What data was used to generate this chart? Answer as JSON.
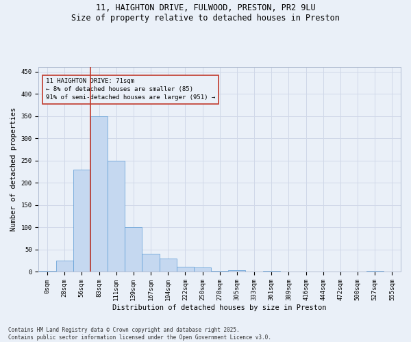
{
  "title_line1": "11, HAIGHTON DRIVE, FULWOOD, PRESTON, PR2 9LU",
  "title_line2": "Size of property relative to detached houses in Preston",
  "xlabel": "Distribution of detached houses by size in Preston",
  "ylabel": "Number of detached properties",
  "bar_values": [
    3,
    25,
    230,
    350,
    250,
    100,
    40,
    30,
    12,
    10,
    3,
    4,
    0,
    2,
    0,
    0,
    0,
    0,
    0,
    2,
    1
  ],
  "bar_labels": [
    "0sqm",
    "28sqm",
    "56sqm",
    "83sqm",
    "111sqm",
    "139sqm",
    "167sqm",
    "194sqm",
    "222sqm",
    "250sqm",
    "278sqm",
    "305sqm",
    "333sqm",
    "361sqm",
    "389sqm",
    "416sqm",
    "444sqm",
    "472sqm",
    "500sqm",
    "527sqm",
    "555sqm"
  ],
  "bar_color": "#c5d8f0",
  "bar_edge_color": "#5b9bd5",
  "grid_color": "#d0d8e8",
  "background_color": "#eaf0f8",
  "vline_x": 2.5,
  "vline_color": "#c0392b",
  "annotation_text": "11 HAIGHTON DRIVE: 71sqm\n← 8% of detached houses are smaller (85)\n91% of semi-detached houses are larger (951) →",
  "annotation_box_color": "#c0392b",
  "ylim": [
    0,
    460
  ],
  "yticks": [
    0,
    50,
    100,
    150,
    200,
    250,
    300,
    350,
    400,
    450
  ],
  "footnote": "Contains HM Land Registry data © Crown copyright and database right 2025.\nContains public sector information licensed under the Open Government Licence v3.0.",
  "title_fontsize": 8.5,
  "tick_fontsize": 6.5,
  "label_fontsize": 7.5,
  "footnote_fontsize": 5.5
}
